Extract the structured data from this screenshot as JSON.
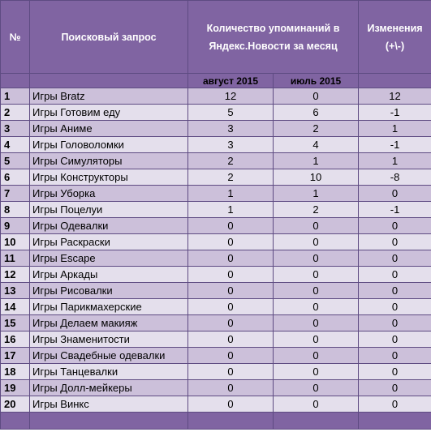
{
  "headers": {
    "num": "№",
    "query": "Поисковый запрос",
    "count": "Количество упоминаний в Яндекс.Новости за месяц",
    "change": "Изменения (+\\-)"
  },
  "subheaders": {
    "aug": "август 2015",
    "jul": "июль 2015"
  },
  "rows": [
    {
      "n": "1",
      "q": "Игры Bratz",
      "aug": "12",
      "jul": "0",
      "chg": "12"
    },
    {
      "n": "2",
      "q": "Игры Готовим еду",
      "aug": "5",
      "jul": "6",
      "chg": "-1"
    },
    {
      "n": "3",
      "q": "Игры Аниме",
      "aug": "3",
      "jul": "2",
      "chg": "1"
    },
    {
      "n": "4",
      "q": "Игры Головоломки",
      "aug": "3",
      "jul": "4",
      "chg": "-1"
    },
    {
      "n": "5",
      "q": "Игры Симуляторы",
      "aug": "2",
      "jul": "1",
      "chg": "1"
    },
    {
      "n": "6",
      "q": "Игры Конструкторы",
      "aug": "2",
      "jul": "10",
      "chg": "-8"
    },
    {
      "n": "7",
      "q": "Игры Уборка",
      "aug": "1",
      "jul": "1",
      "chg": "0"
    },
    {
      "n": "8",
      "q": "Игры Поцелуи",
      "aug": "1",
      "jul": "2",
      "chg": "-1"
    },
    {
      "n": "9",
      "q": "Игры Одевалки",
      "aug": "0",
      "jul": "0",
      "chg": "0"
    },
    {
      "n": "10",
      "q": "Игры Раскраски",
      "aug": "0",
      "jul": "0",
      "chg": "0"
    },
    {
      "n": "11",
      "q": "Игры Escape",
      "aug": "0",
      "jul": "0",
      "chg": "0"
    },
    {
      "n": "12",
      "q": "Игры Аркады",
      "aug": "0",
      "jul": "0",
      "chg": "0"
    },
    {
      "n": "13",
      "q": "Игры Рисовалки",
      "aug": "0",
      "jul": "0",
      "chg": "0"
    },
    {
      "n": "14",
      "q": "Игры Парикмахерские",
      "aug": "0",
      "jul": "0",
      "chg": "0"
    },
    {
      "n": "15",
      "q": "Игры Делаем макияж",
      "aug": "0",
      "jul": "0",
      "chg": "0"
    },
    {
      "n": "16",
      "q": "Игры Знаменитости",
      "aug": "0",
      "jul": "0",
      "chg": "0"
    },
    {
      "n": "17",
      "q": "Игры Свадебные одевалки",
      "aug": "0",
      "jul": "0",
      "chg": "0"
    },
    {
      "n": "18",
      "q": "Игры Танцевалки",
      "aug": "0",
      "jul": "0",
      "chg": "0"
    },
    {
      "n": "19",
      "q": "Игры Долл-мейкеры",
      "aug": "0",
      "jul": "0",
      "chg": "0"
    },
    {
      "n": "20",
      "q": "Игры Винкс",
      "aug": "0",
      "jul": "0",
      "chg": "0"
    }
  ],
  "colors": {
    "header": "#8064a2",
    "row_odd": "#ccc0da",
    "row_even": "#e4dfec"
  }
}
